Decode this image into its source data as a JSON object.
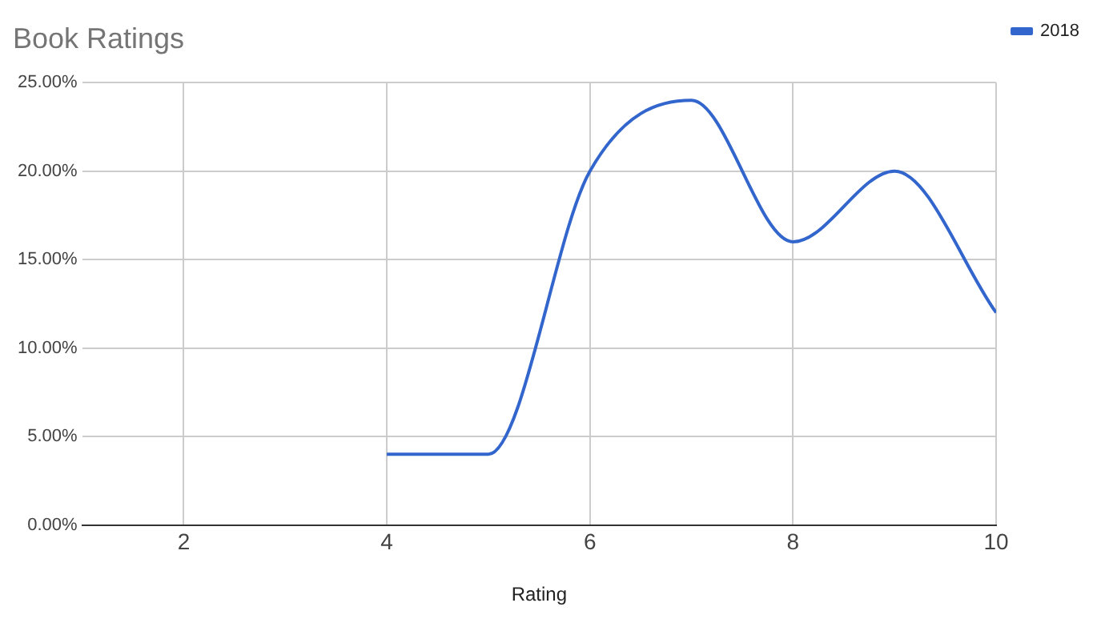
{
  "chart_data": {
    "type": "line",
    "title": "Book Ratings",
    "xlabel": "Rating",
    "x": [
      4,
      5,
      6,
      7,
      8,
      9,
      10
    ],
    "series": [
      {
        "name": "2018",
        "color": "#3366cc",
        "values": [
          4,
          4,
          20,
          24,
          16,
          20,
          12
        ]
      }
    ],
    "xlim": [
      1,
      10
    ],
    "xticks": [
      2,
      4,
      6,
      8,
      10
    ],
    "ylim": [
      0,
      25
    ],
    "yticks": [
      {
        "value": 0,
        "label": "0.00%"
      },
      {
        "value": 5,
        "label": "5.00%"
      },
      {
        "value": 10,
        "label": "10.00%"
      },
      {
        "value": 15,
        "label": "15.00%"
      },
      {
        "value": 20,
        "label": "20.00%"
      },
      {
        "value": 25,
        "label": "25.00%"
      }
    ],
    "grid": true,
    "legend": "right",
    "marker": "none",
    "line_style": "solid"
  }
}
